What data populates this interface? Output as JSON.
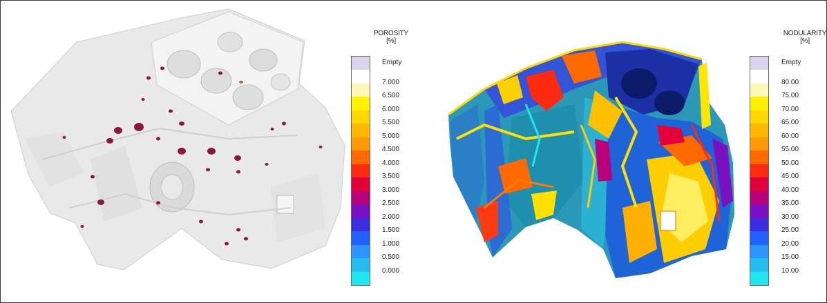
{
  "figure": {
    "porosity": {
      "title_line1": "POROSITY",
      "title_line2": "[%]",
      "labels": [
        "Empty",
        "7.000",
        "6.500",
        "6.000",
        "5.500",
        "5.000",
        "4.500",
        "4.000",
        "3.500",
        "3.000",
        "2.500",
        "2.000",
        "1.500",
        "1.000",
        "0.500",
        "0.000"
      ]
    },
    "nodularity": {
      "title_line1": "NODULARITY",
      "title_line2": "[%]",
      "labels": [
        "Empty",
        "80.00",
        "75.00",
        "70.00",
        "65.00",
        "60.00",
        "55.00",
        "50.00",
        "45.00",
        "40.00",
        "35.00",
        "30.00",
        "25.00",
        "20.00",
        "15.00",
        "10.00"
      ]
    },
    "colors": [
      "#dcd4ee",
      "#ffffff",
      "#fff9b8",
      "#fff200",
      "#ffd800",
      "#ffb800",
      "#ff9a00",
      "#ff6a00",
      "#ff2a10",
      "#e3003b",
      "#b8007a",
      "#7a10c0",
      "#3b2ee0",
      "#2060ff",
      "#2a94ff",
      "#25bdf0",
      "#20e6f0"
    ],
    "defect_color": "#8a1838"
  }
}
